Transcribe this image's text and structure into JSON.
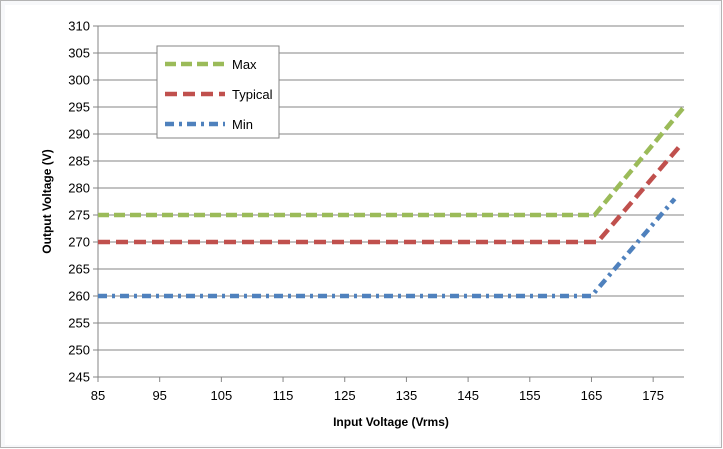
{
  "chart_data": {
    "type": "line",
    "xlabel": "Input Voltage (Vrms)",
    "ylabel": "Output Voltage (V)",
    "xlim": [
      85,
      180
    ],
    "ylim": [
      245,
      310
    ],
    "xticks": [
      85,
      95,
      105,
      115,
      125,
      135,
      145,
      155,
      165,
      175
    ],
    "yticks": [
      245,
      250,
      255,
      260,
      265,
      270,
      275,
      280,
      285,
      290,
      295,
      300,
      305,
      310
    ],
    "grid": "horizontal",
    "legend_position": "top-left",
    "series": [
      {
        "name": "Max",
        "color": "#9bbb59",
        "dash": "long-dash",
        "x": [
          85,
          165.5,
          180
        ],
        "y": [
          275,
          275,
          295
        ]
      },
      {
        "name": "Typical",
        "color": "#c0504d",
        "dash": "dash",
        "x": [
          85,
          166,
          179.5
        ],
        "y": [
          270,
          270,
          288
        ]
      },
      {
        "name": "Min",
        "color": "#4f81bd",
        "dash": "dash-dot",
        "x": [
          85,
          165,
          178.5
        ],
        "y": [
          260,
          260,
          278
        ]
      }
    ]
  }
}
